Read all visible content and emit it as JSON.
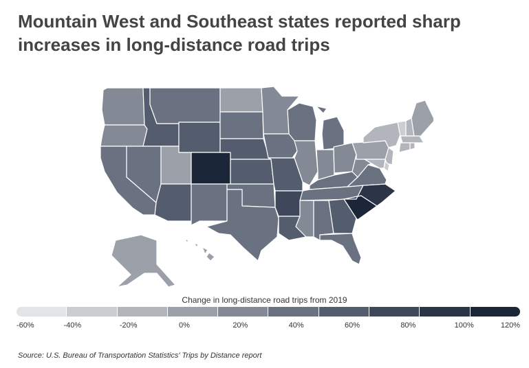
{
  "title": "Mountain West and Southeast states reported sharp increases in long-distance road trips",
  "legend": {
    "title": "Change in long-distance road trips from 2019",
    "ticks": [
      "-60%",
      "-40%",
      "-20%",
      "0%",
      "20%",
      "40%",
      "60%",
      "80%",
      "100%",
      "120%"
    ],
    "colors": [
      "#e3e4e6",
      "#cbcdd1",
      "#b2b6bc",
      "#9ba0a9",
      "#848a95",
      "#6a7180",
      "#545d6d",
      "#3f485a",
      "#2c3548",
      "#1b2639"
    ]
  },
  "source": "Source: U.S. Bureau of Transportation Statistics' Trips by Distance report",
  "states": [
    {
      "id": "WA",
      "bin": 4
    },
    {
      "id": "OR",
      "bin": 4
    },
    {
      "id": "CA",
      "bin": 5
    },
    {
      "id": "ID",
      "bin": 6
    },
    {
      "id": "NV",
      "bin": 5
    },
    {
      "id": "UT",
      "bin": 3
    },
    {
      "id": "AZ",
      "bin": 6
    },
    {
      "id": "MT",
      "bin": 5
    },
    {
      "id": "WY",
      "bin": 6
    },
    {
      "id": "CO",
      "bin": 9
    },
    {
      "id": "NM",
      "bin": 5
    },
    {
      "id": "ND",
      "bin": 3
    },
    {
      "id": "SD",
      "bin": 5
    },
    {
      "id": "NE",
      "bin": 6
    },
    {
      "id": "KS",
      "bin": 6
    },
    {
      "id": "OK",
      "bin": 5
    },
    {
      "id": "TX",
      "bin": 5
    },
    {
      "id": "MN",
      "bin": 4
    },
    {
      "id": "IA",
      "bin": 5
    },
    {
      "id": "MO",
      "bin": 6
    },
    {
      "id": "AR",
      "bin": 7
    },
    {
      "id": "LA",
      "bin": 6
    },
    {
      "id": "WI",
      "bin": 5
    },
    {
      "id": "IL",
      "bin": 4
    },
    {
      "id": "MI",
      "bin": 5
    },
    {
      "id": "IN",
      "bin": 4
    },
    {
      "id": "OH",
      "bin": 4
    },
    {
      "id": "KY",
      "bin": 5
    },
    {
      "id": "TN",
      "bin": 5
    },
    {
      "id": "MS",
      "bin": 4
    },
    {
      "id": "AL",
      "bin": 5
    },
    {
      "id": "GA",
      "bin": 6
    },
    {
      "id": "FL",
      "bin": 5
    },
    {
      "id": "SC",
      "bin": 9
    },
    {
      "id": "NC",
      "bin": 8
    },
    {
      "id": "VA",
      "bin": 5
    },
    {
      "id": "WV",
      "bin": 4
    },
    {
      "id": "PA",
      "bin": 3
    },
    {
      "id": "NY",
      "bin": 2
    },
    {
      "id": "VT",
      "bin": 1
    },
    {
      "id": "NH",
      "bin": 2
    },
    {
      "id": "ME",
      "bin": 3
    },
    {
      "id": "MA",
      "bin": 2
    },
    {
      "id": "CT",
      "bin": 2
    },
    {
      "id": "RI",
      "bin": 2
    },
    {
      "id": "NJ",
      "bin": 2
    },
    {
      "id": "DE",
      "bin": 1
    },
    {
      "id": "MD",
      "bin": 2
    },
    {
      "id": "AK",
      "bin": 3
    },
    {
      "id": "HI",
      "bin": 3
    }
  ]
}
